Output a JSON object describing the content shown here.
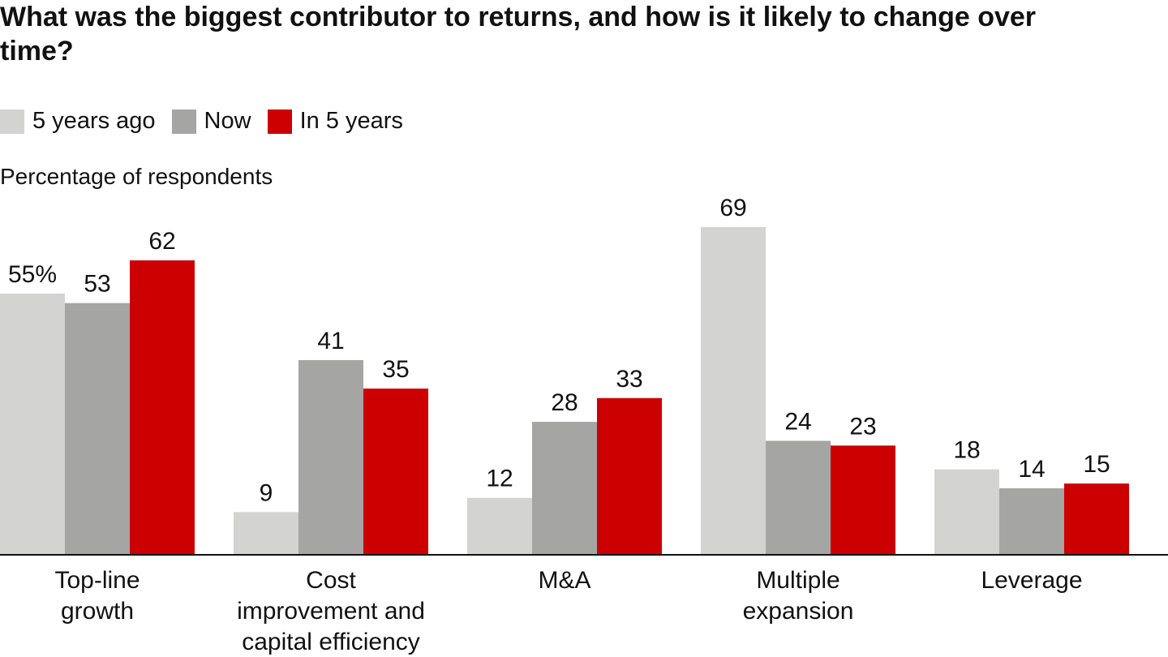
{
  "chart_data": {
    "type": "bar",
    "title": "What was the biggest contributor to returns, and how is it likely to change over time?",
    "subtitle": "Percentage of respondents",
    "categories": [
      [
        "Top-line",
        "growth"
      ],
      [
        "Cost",
        "improvement and",
        "capital efficiency"
      ],
      [
        "M&A"
      ],
      [
        "Multiple",
        "expansion"
      ],
      [
        "Leverage"
      ]
    ],
    "series": [
      {
        "name": "5 years ago",
        "color": "#d3d3d2",
        "values": [
          55,
          9,
          12,
          69,
          18
        ],
        "value_labels": [
          "55%",
          "9",
          "12",
          "69",
          "18"
        ]
      },
      {
        "name": "Now",
        "color": "#a5a5a4",
        "values": [
          53,
          41,
          28,
          24,
          14
        ]
      },
      {
        "name": "In 5 years",
        "color": "#cc0000",
        "values": [
          62,
          35,
          33,
          23,
          15
        ]
      }
    ]
  }
}
